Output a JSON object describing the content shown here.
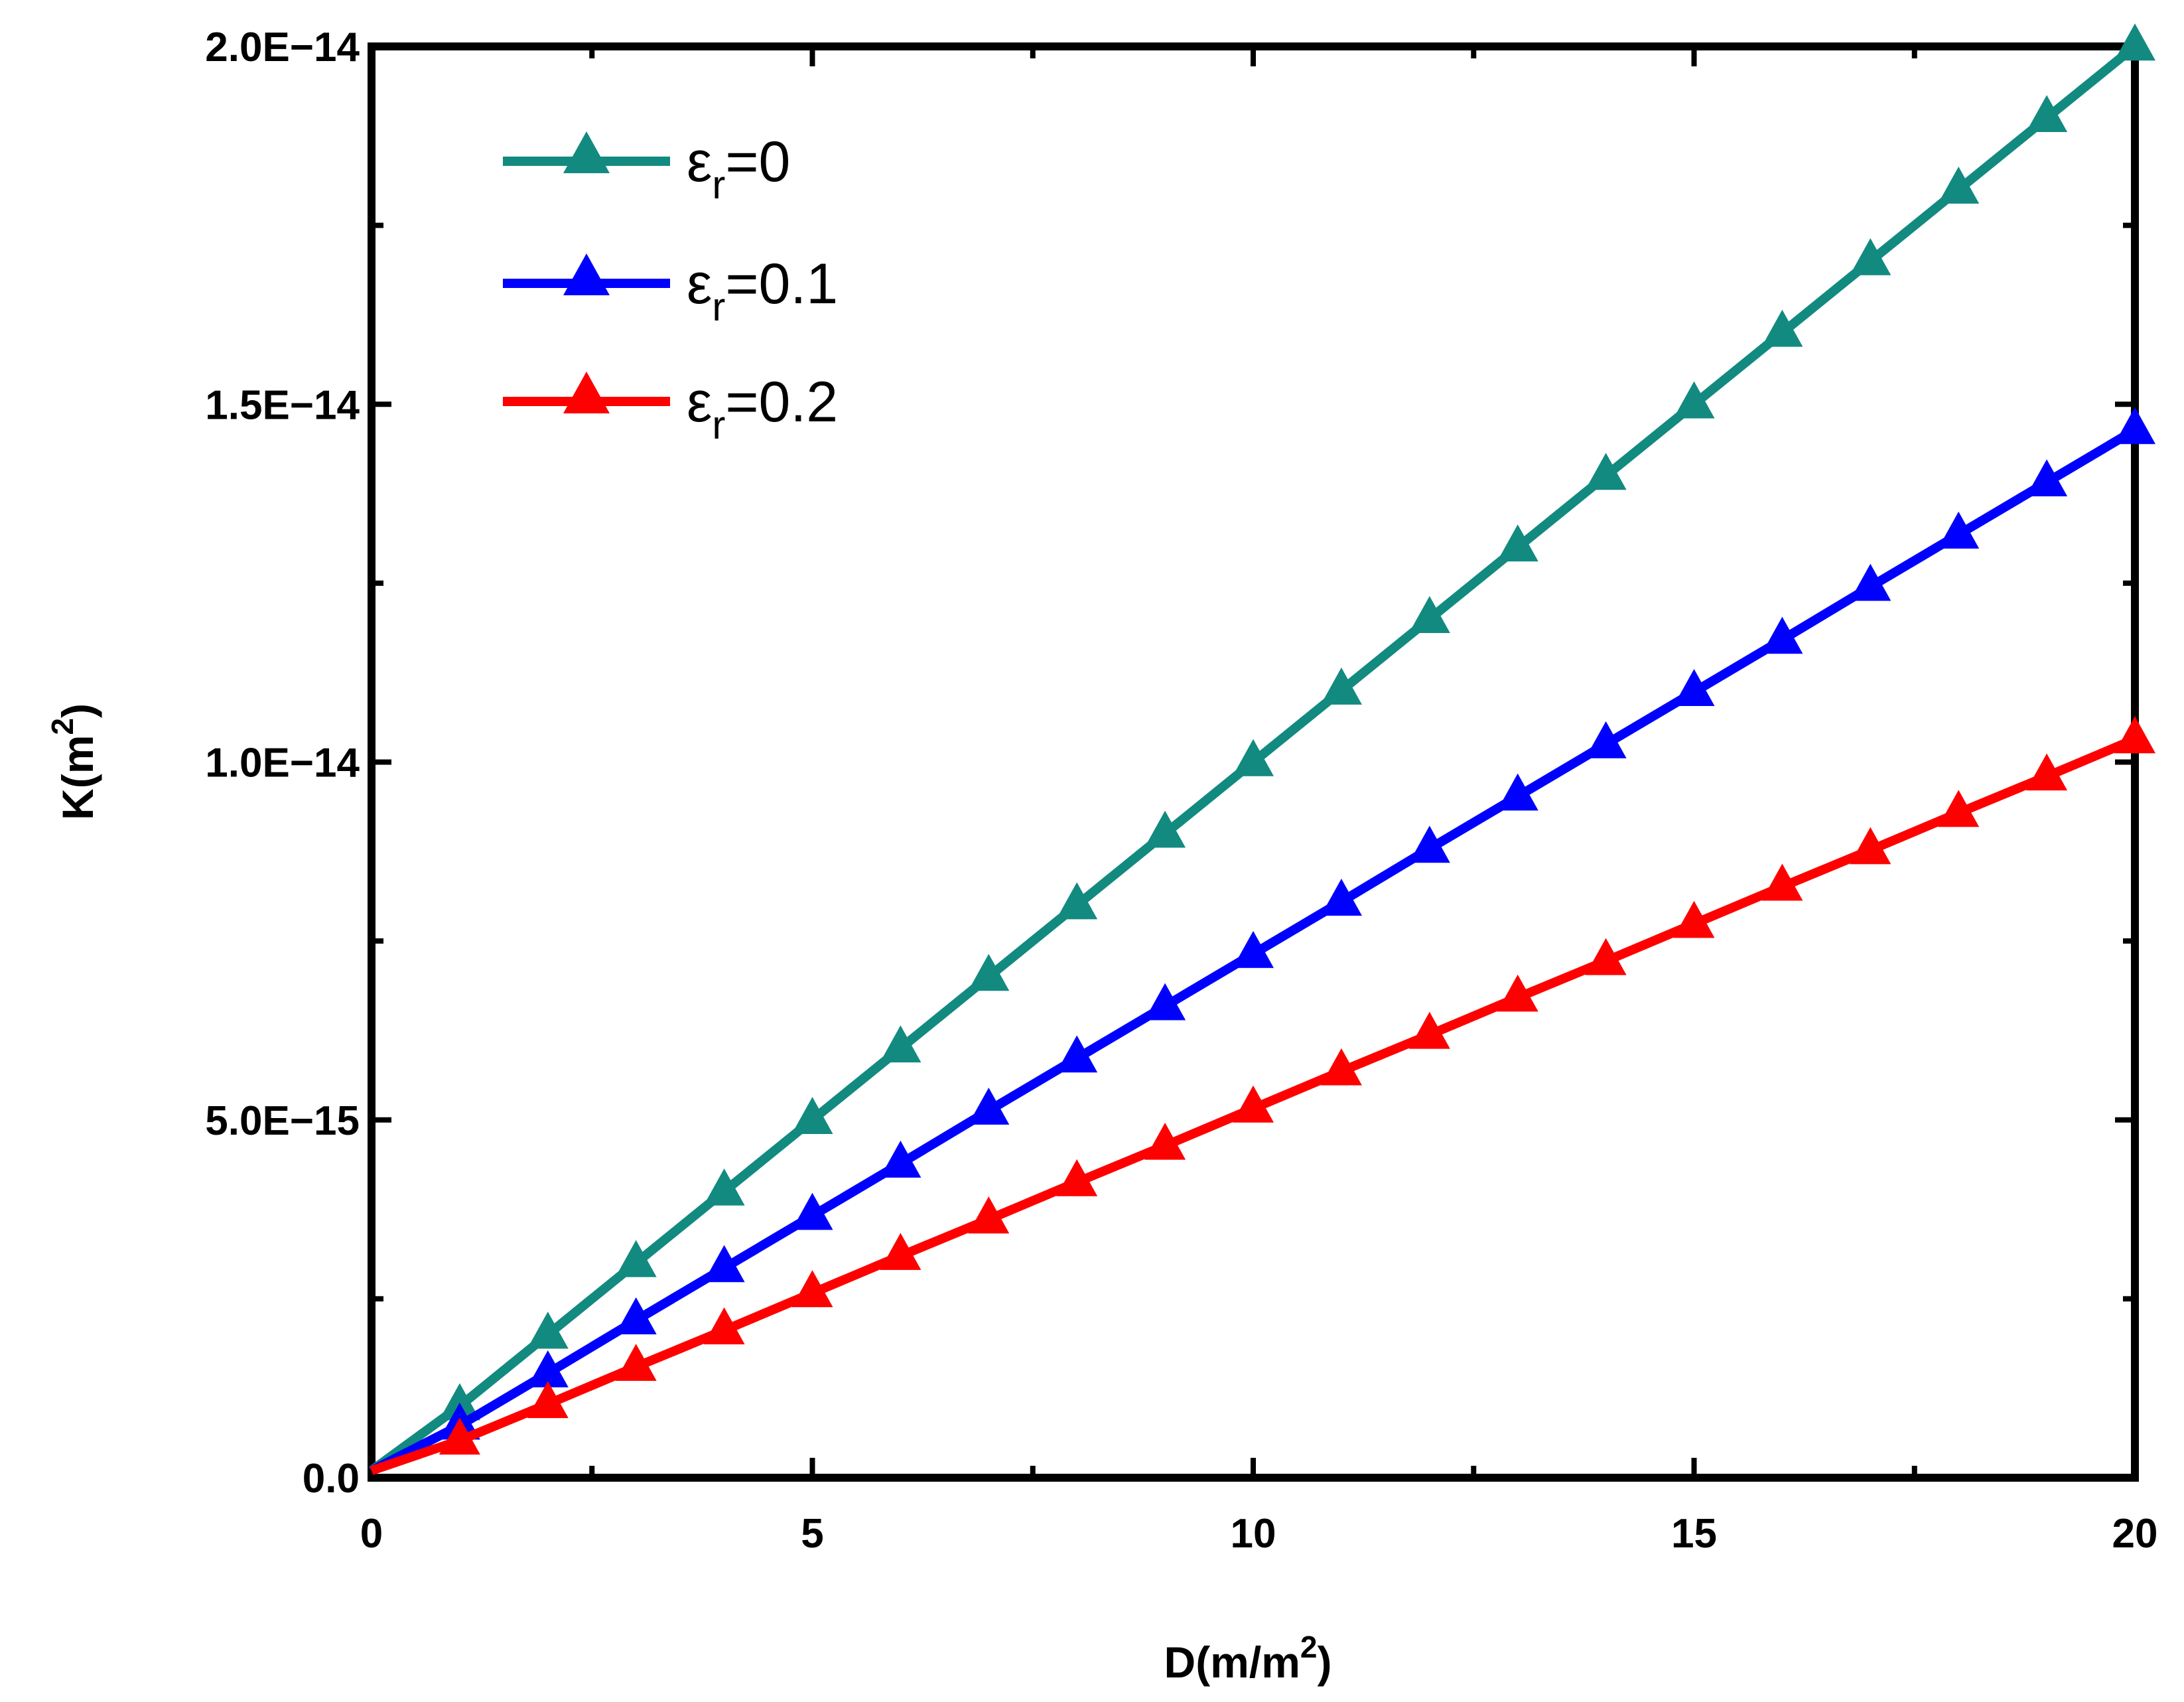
{
  "chart_data": {
    "type": "line",
    "title": "",
    "xlabel": "D(m/m",
    "xlabel_sup": "2",
    "xlabel_end": ")",
    "ylabel": "K(m",
    "ylabel_sup": "2",
    "ylabel_end": ")",
    "xlim": [
      0,
      20
    ],
    "ylim": [
      0,
      2e-14
    ],
    "x_ticks": [
      0,
      5,
      10,
      15,
      20
    ],
    "x_tick_labels": [
      "0",
      "5",
      "10",
      "15",
      "20"
    ],
    "y_ticks": [
      0,
      5e-15,
      1e-14,
      1.5e-14,
      2e-14
    ],
    "y_tick_labels": [
      "0.0",
      "5.0E−15",
      "1.0E−14",
      "1.5E−14",
      "2.0E−14"
    ],
    "legend_position": "top-left",
    "x": [
      0,
      1,
      2,
      3,
      4,
      5,
      6,
      7,
      8,
      9,
      10,
      11,
      12,
      13,
      14,
      15,
      16,
      17,
      18,
      19,
      20
    ],
    "series": [
      {
        "name": "εr=0",
        "label_main": "ε",
        "label_sub": "r",
        "label_rest": "=0",
        "color": "#128a80",
        "values": [
          1e-16,
          1e-15,
          2e-15,
          3e-15,
          4e-15,
          5e-15,
          6e-15,
          7e-15,
          8e-15,
          9e-15,
          1e-14,
          1.1e-14,
          1.2e-14,
          1.3e-14,
          1.4e-14,
          1.5e-14,
          1.6e-14,
          1.7e-14,
          1.8e-14,
          1.9e-14,
          2e-14
        ]
      },
      {
        "name": "εr=0.1",
        "label_main": "ε",
        "label_sub": "r",
        "label_rest": "=0.1",
        "color": "#0000ff",
        "values": [
          1e-16,
          7.3e-16,
          1.46e-15,
          2.2e-15,
          2.93e-15,
          3.66e-15,
          4.39e-15,
          5.13e-15,
          5.86e-15,
          6.59e-15,
          7.32e-15,
          8.05e-15,
          8.79e-15,
          9.52e-15,
          1.025e-14,
          1.098e-14,
          1.171e-14,
          1.245e-14,
          1.318e-14,
          1.391e-14,
          1.464e-14
        ]
      },
      {
        "name": "εr=0.2",
        "label_main": "ε",
        "label_sub": "r",
        "label_rest": "=0.2",
        "color": "#ff0000",
        "values": [
          1e-16,
          5.2e-16,
          1.03e-15,
          1.55e-15,
          2.06e-15,
          2.58e-15,
          3.1e-15,
          3.61e-15,
          4.13e-15,
          4.64e-15,
          5.16e-15,
          5.68e-15,
          6.19e-15,
          6.71e-15,
          7.22e-15,
          7.74e-15,
          8.26e-15,
          8.77e-15,
          9.29e-15,
          9.8e-15,
          1.032e-14
        ]
      }
    ]
  }
}
